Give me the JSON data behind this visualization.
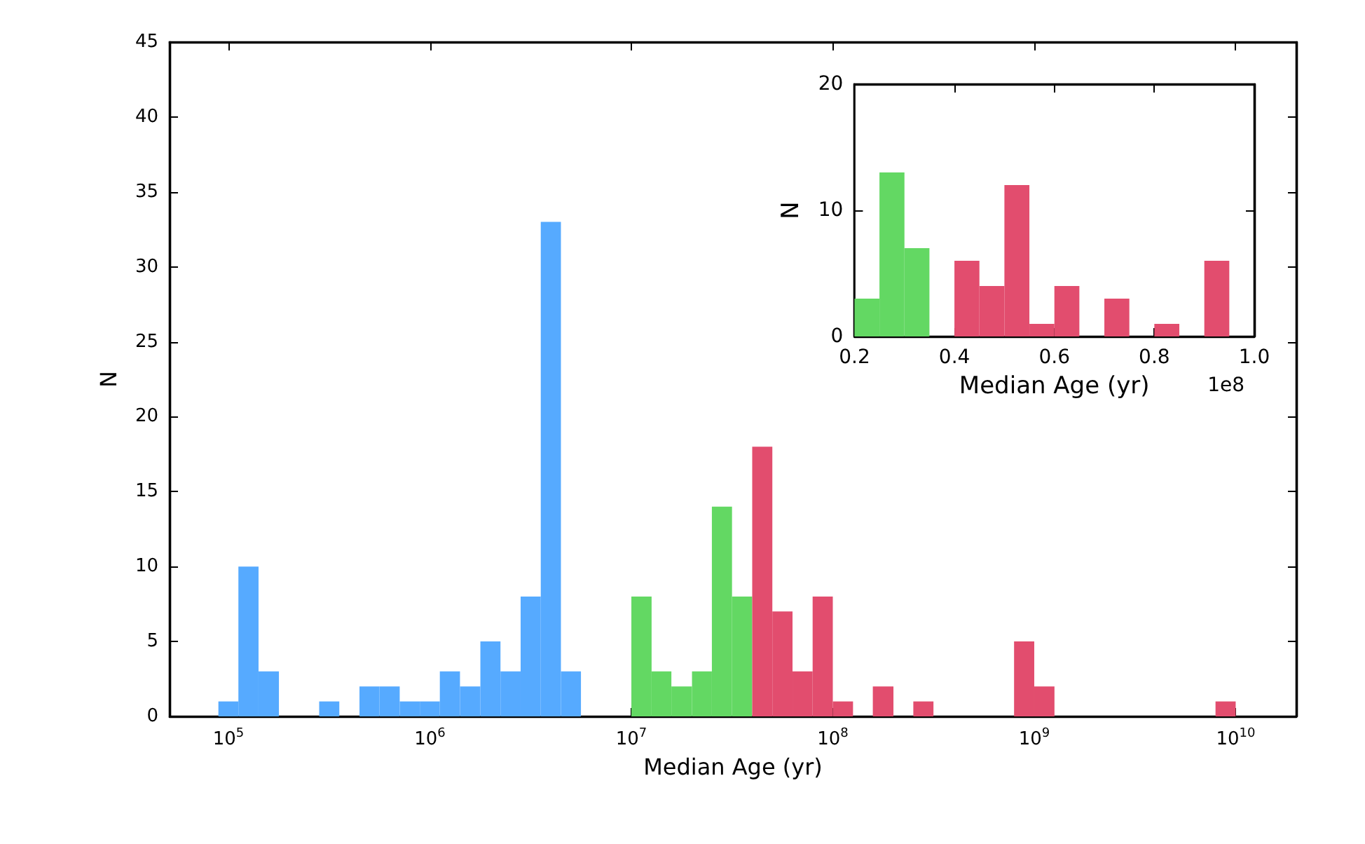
{
  "chart_data": [
    {
      "type": "histogram",
      "xlabel": "Median Age (yr)",
      "ylabel": "N",
      "log": "x",
      "xlim": [
        51000,
        20000000000
      ],
      "ylim": [
        0,
        45
      ],
      "xticks": [
        {
          "value": 100000,
          "label": "10$^{5}$"
        },
        {
          "value": 1000000,
          "label": "10$^{6}$"
        },
        {
          "value": 10000000,
          "label": "10$^{7}$"
        },
        {
          "value": 100000000,
          "label": "10$^{8}$"
        },
        {
          "value": 1000000000,
          "label": "10$^{9}$"
        },
        {
          "value": 10000000000,
          "label": "10$^{10}$"
        }
      ],
      "yticks": [
        0,
        5,
        10,
        15,
        20,
        25,
        30,
        35,
        40,
        45
      ],
      "bins": [
        89100,
        112000,
        141000,
        178000,
        282000,
        355000,
        447000,
        562000,
        708000,
        891000,
        1120000,
        1410000,
        1780000,
        2240000,
        2820000,
        3550000,
        4470000,
        5620000,
        10000000,
        12600000,
        15800000,
        20000000,
        25100000,
        31600000,
        39800000,
        50100000,
        63100000,
        79400000,
        100000000,
        126000000,
        158000000,
        200000000,
        251000000,
        316000000,
        794000000,
        1000000000,
        1260000000,
        7940000000,
        10000000000
      ],
      "series": [
        {
          "color": "#56aaff",
          "values": [
            1,
            10,
            3,
            0,
            1,
            0,
            2,
            2,
            1,
            1,
            3,
            2,
            5,
            3,
            8,
            33,
            3,
            null,
            null,
            null,
            null,
            null,
            null,
            null,
            null,
            null,
            null,
            null,
            null,
            null,
            null,
            null,
            null,
            null,
            null,
            null,
            null,
            null
          ]
        },
        {
          "color": "#63d863",
          "values": [
            null,
            null,
            null,
            null,
            null,
            null,
            null,
            null,
            null,
            null,
            null,
            null,
            null,
            null,
            null,
            null,
            null,
            null,
            8,
            3,
            2,
            3,
            14,
            8,
            null,
            null,
            null,
            null,
            null,
            null,
            null,
            null,
            null,
            null,
            null,
            null,
            null,
            null
          ]
        },
        {
          "color": "#e24d6e",
          "values": [
            null,
            null,
            null,
            null,
            null,
            null,
            null,
            null,
            null,
            null,
            null,
            null,
            null,
            null,
            null,
            null,
            null,
            null,
            null,
            null,
            null,
            null,
            null,
            null,
            18,
            7,
            3,
            8,
            1,
            0,
            2,
            0,
            1,
            0,
            5,
            2,
            0,
            1
          ]
        }
      ]
    },
    {
      "type": "histogram",
      "xlabel": "Median Age (yr)",
      "ylabel": "N",
      "xlim": [
        0.2,
        1.0
      ],
      "ylim": [
        0,
        20
      ],
      "xticks": [
        0.2,
        0.4,
        0.6,
        0.8,
        {
          "value": 1,
          "label": "1.0"
        }
      ],
      "yticks": [
        0,
        10,
        20
      ],
      "annotations": [
        "1e8"
      ],
      "bins": [
        0.2,
        0.25,
        0.3,
        0.35,
        0.4,
        0.45,
        0.5,
        0.55,
        0.6,
        0.65,
        0.7,
        0.75,
        0.8,
        0.85,
        0.9,
        0.95
      ],
      "series": [
        {
          "color": "#63d863",
          "values": [
            3,
            13,
            7,
            null,
            null,
            null,
            null,
            null,
            null,
            null,
            null,
            null,
            null,
            null,
            null
          ]
        },
        {
          "color": "#e24d6e",
          "values": [
            null,
            null,
            null,
            null,
            6,
            4,
            12,
            1,
            4,
            0,
            3,
            0,
            1,
            0,
            6
          ]
        }
      ]
    }
  ]
}
